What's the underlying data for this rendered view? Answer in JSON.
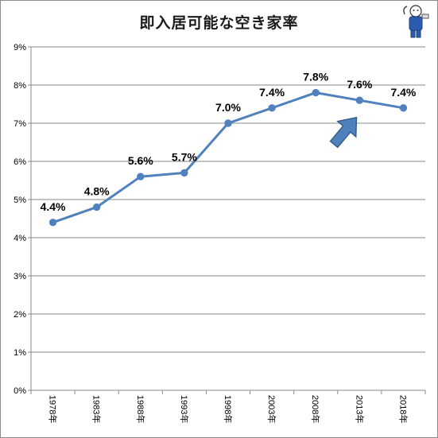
{
  "chart_data": {
    "type": "line",
    "title": "即入居可能な空き家率",
    "categories": [
      "1978年",
      "1983年",
      "1988年",
      "1993年",
      "1998年",
      "2003年",
      "2008年",
      "2013年",
      "2018年"
    ],
    "values": [
      4.4,
      4.8,
      5.6,
      5.7,
      7.0,
      7.4,
      7.8,
      7.6,
      7.4
    ],
    "data_labels": [
      "4.4%",
      "4.8%",
      "5.6%",
      "5.7%",
      "7.0%",
      "7.4%",
      "7.8%",
      "7.6%",
      "7.4%"
    ],
    "y_ticks": [
      "0%",
      "1%",
      "2%",
      "3%",
      "4%",
      "5%",
      "6%",
      "7%",
      "8%",
      "9%"
    ],
    "ylim": [
      0,
      9
    ],
    "grid": true,
    "line_color": "#4f81bd",
    "arrow_color": "#4f81bd",
    "annotation": "up-arrow-near-2013"
  }
}
